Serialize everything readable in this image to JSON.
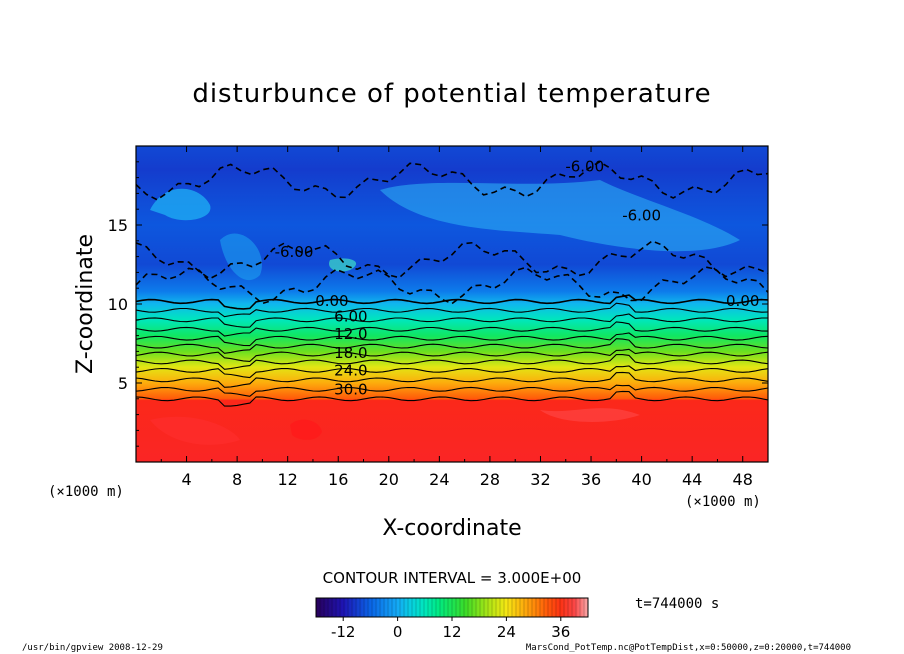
{
  "chart_data": {
    "type": "heatmap",
    "title": "disturbunce of potential temperature",
    "xlabel": "X-coordinate",
    "ylabel": "Z-coordinate",
    "x_unit": "(×1000 m)",
    "y_unit": "(×1000 m)",
    "xlim": [
      0,
      50
    ],
    "ylim": [
      0,
      20
    ],
    "x_ticks": [
      "4",
      "8",
      "12",
      "16",
      "20",
      "24",
      "28",
      "32",
      "36",
      "40",
      "44",
      "48"
    ],
    "y_ticks": [
      "5",
      "10",
      "15"
    ],
    "contour_interval_label": "CONTOUR INTERVAL = 3.000E+00",
    "contour_labels": [
      {
        "text": "-6.00",
        "x": 35.5,
        "z": 18.7
      },
      {
        "text": "-6.00",
        "x": 40.0,
        "z": 15.6
      },
      {
        "text": "-6.00",
        "x": 12.5,
        "z": 13.3
      },
      {
        "text": "0.00",
        "x": 15.5,
        "z": 10.2
      },
      {
        "text": "0.00",
        "x": 48.0,
        "z": 10.2
      },
      {
        "text": "6.00",
        "x": 17.0,
        "z": 9.2
      },
      {
        "text": "12.0",
        "x": 17.0,
        "z": 8.1
      },
      {
        "text": "18.0",
        "x": 17.0,
        "z": 6.9
      },
      {
        "text": "24.0",
        "x": 17.0,
        "z": 5.8
      },
      {
        "text": "30.0",
        "x": 17.0,
        "z": 4.6
      }
    ],
    "field_profile": [
      {
        "z": 0,
        "value": 38
      },
      {
        "z": 3.9,
        "value": 37
      },
      {
        "z": 4.0,
        "value": 33
      },
      {
        "z": 5.0,
        "value": 28
      },
      {
        "z": 6.0,
        "value": 23
      },
      {
        "z": 7.0,
        "value": 17
      },
      {
        "z": 8.0,
        "value": 11
      },
      {
        "z": 9.0,
        "value": 6
      },
      {
        "z": 10.0,
        "value": 1
      },
      {
        "z": 10.8,
        "value": -4
      },
      {
        "z": 12.5,
        "value": -8
      },
      {
        "z": 15.0,
        "value": -7
      },
      {
        "z": 17.0,
        "value": -8
      },
      {
        "z": 18.5,
        "value": -9
      },
      {
        "z": 20.0,
        "value": -8
      }
    ],
    "colorbar": {
      "range": [
        -18,
        42
      ],
      "ticks": [
        "-12",
        "0",
        "12",
        "24",
        "36"
      ],
      "tick_values": [
        -12,
        0,
        12,
        24,
        36
      ]
    }
  },
  "time_label": "t=744000 s",
  "footer_left": "/usr/bin/gpview   2008-12-29",
  "footer_right": "MarsCond_PotTemp.nc@PotTempDist,x=0:50000,z=0:20000,t=744000"
}
